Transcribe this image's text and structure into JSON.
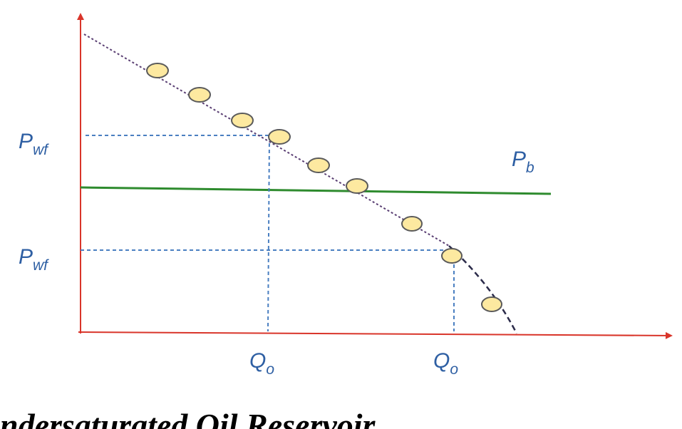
{
  "labels": {
    "pwf_upper": {
      "main": "P",
      "sub": "wf"
    },
    "pwf_lower": {
      "main": "P",
      "sub": "wf"
    },
    "pb": {
      "main": "P",
      "sub": "b"
    },
    "qo_left": {
      "main": "Q",
      "sub": "o"
    },
    "qo_right": {
      "main": "Q",
      "sub": "o"
    }
  },
  "caption": "ndersaturated Oil Reservoir"
}
